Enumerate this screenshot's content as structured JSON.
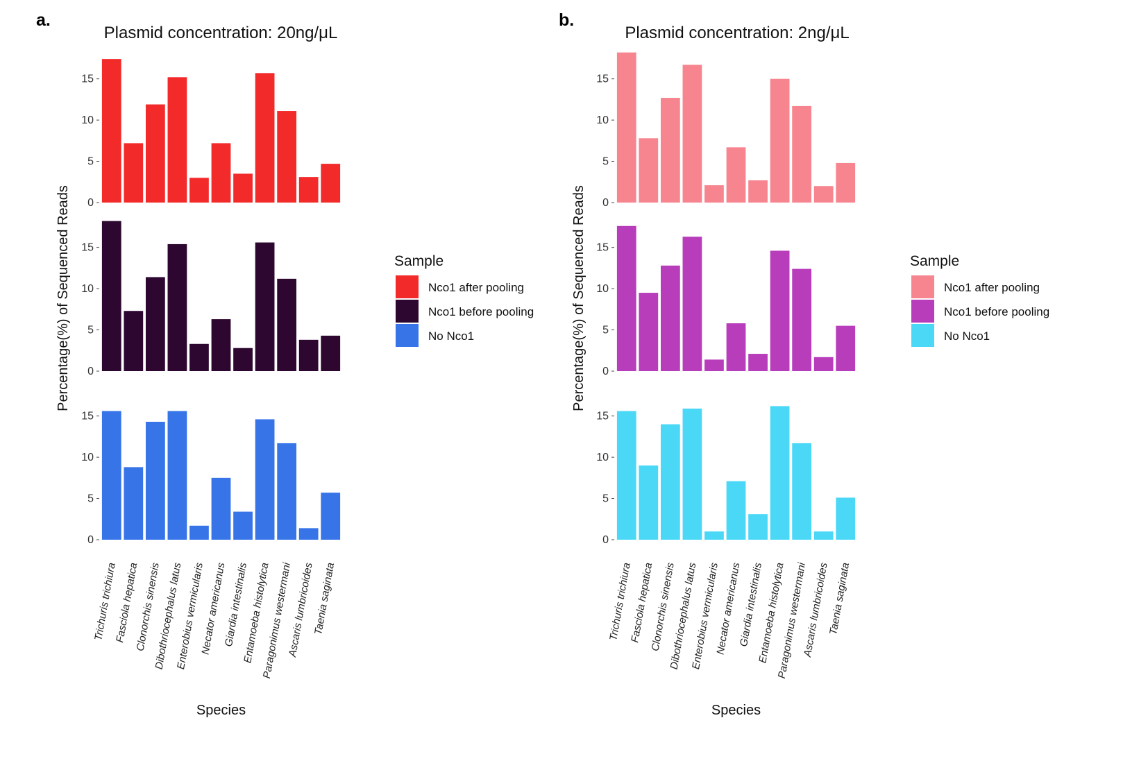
{
  "chart_data": [
    {
      "type": "bar",
      "panel_letter": "a.",
      "title": "Plasmid concentration: 20ng/μL",
      "xlabel": "Species",
      "ylabel": "Percentage(%) of Sequenced Reads",
      "ylim": [
        0,
        18
      ],
      "yticks": [
        "0",
        "5",
        "10",
        "15"
      ],
      "grid": false,
      "categories": [
        "Trichuris trichiura",
        "Fasciola hepatica",
        "Clonorchis sinensis",
        "Dibothriocephalus latus",
        "Enterobius vermicularis",
        "Necator americanus",
        "Giardia intestinalis",
        "Entamoeba histolytica",
        "Paragonimus westermani",
        "Ascaris lumbricoides",
        "Taenia saginata"
      ],
      "legend": {
        "title": "Sample",
        "placement": "right",
        "entries": [
          "Nco1 after pooling",
          "Nco1 before pooling",
          "No Nco1"
        ]
      },
      "series": [
        {
          "name": "Nco1 after pooling",
          "color": "#F32A2A",
          "values": [
            17.4,
            7.2,
            11.9,
            15.2,
            3.0,
            7.2,
            3.5,
            15.7,
            11.1,
            3.1,
            4.7
          ]
        },
        {
          "name": "Nco1 before pooling",
          "color": "#2D0730",
          "values": [
            18.2,
            7.3,
            11.4,
            15.4,
            3.3,
            6.3,
            2.8,
            15.6,
            11.2,
            3.8,
            4.3
          ]
        },
        {
          "name": "No Nco1",
          "color": "#3674E8",
          "values": [
            15.6,
            8.8,
            14.3,
            15.6,
            1.7,
            7.5,
            3.4,
            14.6,
            11.7,
            1.4,
            5.7
          ]
        }
      ]
    },
    {
      "type": "bar",
      "panel_letter": "b.",
      "title": "Plasmid concentration: 2ng/μL",
      "xlabel": "Species",
      "ylabel": "Percentage(%) of Sequenced Reads",
      "ylim": [
        0,
        18
      ],
      "yticks": [
        "0",
        "5",
        "10",
        "15"
      ],
      "grid": false,
      "categories": [
        "Trichuris trichiura",
        "Fasciola hepatica",
        "Clonorchis sinensis",
        "Dibothriocephalus latus",
        "Enterobius vermicularis",
        "Necator americanus",
        "Giardia intestinalis",
        "Entamoeba histolytica",
        "Paragonimus westermani",
        "Ascaris lumbricoides",
        "Taenia saginata"
      ],
      "legend": {
        "title": "Sample",
        "placement": "right",
        "entries": [
          "Nco1 after pooling",
          "Nco1 before pooling",
          "No Nco1"
        ]
      },
      "series": [
        {
          "name": "Nco1 after pooling",
          "color": "#F7858F",
          "values": [
            18.2,
            7.8,
            12.7,
            16.7,
            2.1,
            6.7,
            2.7,
            15.0,
            11.7,
            2.0,
            4.8
          ]
        },
        {
          "name": "Nco1 before pooling",
          "color": "#B83DBB",
          "values": [
            17.6,
            9.5,
            12.8,
            16.3,
            1.4,
            5.8,
            2.1,
            14.6,
            12.4,
            1.7,
            5.5
          ]
        },
        {
          "name": "No Nco1",
          "color": "#4BD8F7",
          "values": [
            15.6,
            9.0,
            14.0,
            15.9,
            1.0,
            7.1,
            3.1,
            16.2,
            11.7,
            1.0,
            5.1
          ]
        }
      ]
    }
  ]
}
